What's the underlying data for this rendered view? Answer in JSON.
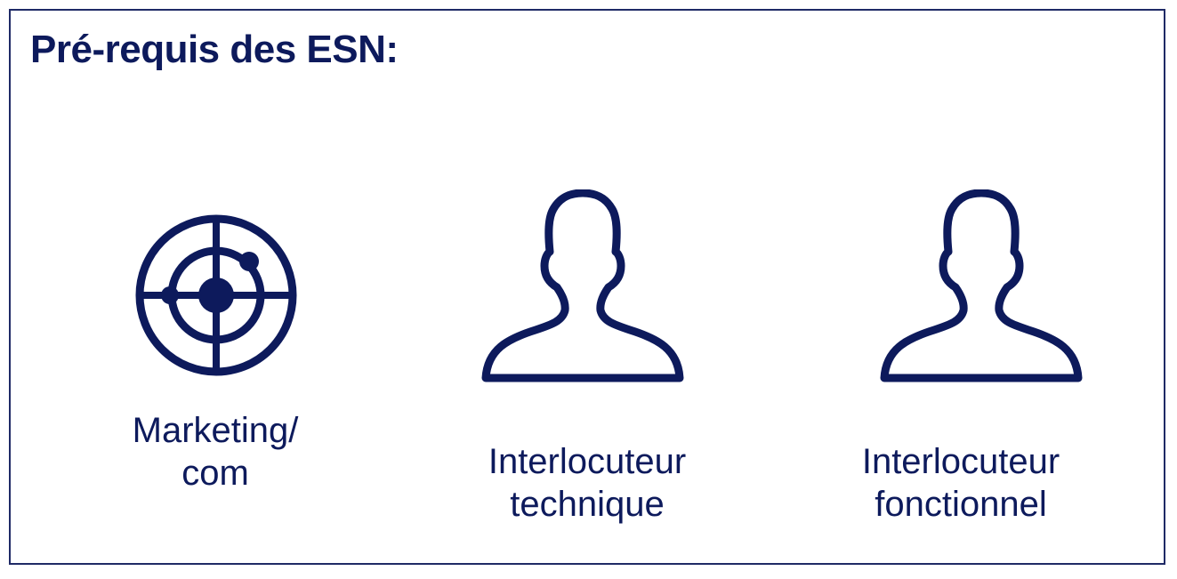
{
  "title": "Pré-requis des ESN:",
  "colors": {
    "primary": "#0d1a5c",
    "border": "#1f2a66",
    "background": "#ffffff"
  },
  "items": [
    {
      "icon": "radar-icon",
      "label_lines": [
        "Marketing/",
        "com"
      ]
    },
    {
      "icon": "person-silhouette-icon",
      "label_lines": [
        "Interlocuteur",
        "technique"
      ]
    },
    {
      "icon": "person-silhouette-icon",
      "label_lines": [
        "Interlocuteur",
        "fonctionnel"
      ]
    }
  ]
}
